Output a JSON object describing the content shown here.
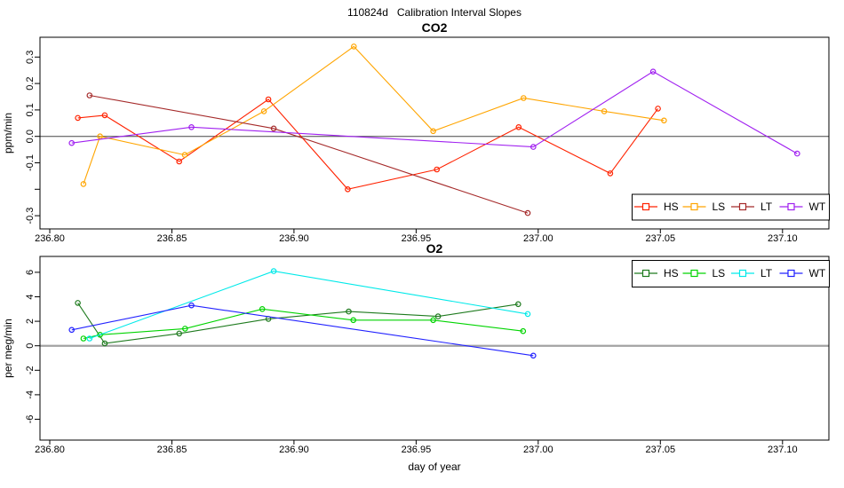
{
  "title": "110824d   Calibration Interval Slopes",
  "chart_data": [
    {
      "type": "line",
      "title": "CO2",
      "xlabel": "",
      "ylabel": "ppm/min",
      "xlim": [
        236.796,
        237.119
      ],
      "ylim": [
        -0.35,
        0.375
      ],
      "grid": false,
      "x_ticks": [
        236.8,
        236.85,
        236.9,
        236.95,
        237.0,
        237.05,
        237.1
      ],
      "x_tick_labels": [
        "236.80",
        "236.85",
        "236.90",
        "236.95",
        "237.00",
        "237.05",
        "237.10"
      ],
      "y_ticks": [
        0.3,
        0.2,
        0.1,
        0.0,
        -0.1,
        -0.2,
        -0.3
      ],
      "y_tick_labels": [
        "0.3",
        "0.2",
        "0.1",
        "0.0",
        "-0.1",
        "",
        "-0.3"
      ],
      "zero_line": {
        "y": 0,
        "color": "#454545",
        "width": 1
      },
      "legend_position": "bottomright",
      "marker": "open-circle",
      "series": [
        {
          "name": "HS",
          "color": "#ff2200",
          "x": [
            236.8115,
            236.8225,
            236.853,
            236.8895,
            236.922,
            236.9585,
            236.992,
            237.0295,
            237.049
          ],
          "y": [
            0.07,
            0.08,
            -0.095,
            0.14,
            -0.2,
            -0.125,
            0.035,
            -0.14,
            0.105
          ]
        },
        {
          "name": "LS",
          "color": "#ffa500",
          "x": [
            236.8138,
            236.8206,
            236.8553,
            236.8877,
            236.9245,
            236.957,
            236.994,
            237.027,
            237.0515
          ],
          "y": [
            -0.18,
            0.0,
            -0.07,
            0.095,
            0.34,
            0.02,
            0.145,
            0.095,
            0.06
          ]
        },
        {
          "name": "LT",
          "color": "#a52a2a",
          "x": [
            236.8163,
            236.8917,
            236.9957
          ],
          "y": [
            0.155,
            0.03,
            -0.29
          ]
        },
        {
          "name": "WT",
          "color": "#a020f0",
          "x": [
            236.809,
            236.858,
            236.998,
            237.047,
            237.106
          ],
          "y": [
            -0.025,
            0.035,
            -0.04,
            0.245,
            -0.065
          ]
        }
      ]
    },
    {
      "type": "line",
      "title": "O2",
      "xlabel": "day of year",
      "ylabel": "per meg/min",
      "xlim": [
        236.796,
        237.119
      ],
      "ylim": [
        -7.7,
        7.3
      ],
      "grid": false,
      "x_ticks": [
        236.8,
        236.85,
        236.9,
        236.95,
        237.0,
        237.05,
        237.1
      ],
      "x_tick_labels": [
        "236.80",
        "236.85",
        "236.90",
        "236.95",
        "237.00",
        "237.05",
        "237.10"
      ],
      "y_ticks": [
        6,
        4,
        2,
        0,
        -2,
        -4,
        -6
      ],
      "y_tick_labels": [
        "6",
        "4",
        "2",
        "0",
        "-2",
        "-4",
        "-6"
      ],
      "zero_line": {
        "y": 0,
        "color": "#a3a3a3",
        "width": 2.2
      },
      "legend_position": "topright",
      "marker": "open-circle",
      "series": [
        {
          "name": "HS",
          "color": "#1e7a1e",
          "x": [
            236.8115,
            236.8225,
            236.853,
            236.8895,
            236.9224,
            236.959,
            236.9918
          ],
          "y": [
            3.5,
            0.2,
            1.0,
            2.2,
            2.8,
            2.4,
            3.4
          ]
        },
        {
          "name": "LS",
          "color": "#00d400",
          "x": [
            236.8138,
            236.8206,
            236.8554,
            236.887,
            236.9243,
            236.957,
            236.9938
          ],
          "y": [
            0.6,
            0.9,
            1.4,
            3.0,
            2.1,
            2.1,
            1.2
          ]
        },
        {
          "name": "LT",
          "color": "#00e9e9",
          "x": [
            236.8163,
            236.8917,
            236.9957
          ],
          "y": [
            0.6,
            6.1,
            2.6
          ]
        },
        {
          "name": "WT",
          "color": "#2222ff",
          "x": [
            236.809,
            236.858,
            236.998
          ],
          "y": [
            1.3,
            3.3,
            -0.8
          ]
        }
      ]
    }
  ]
}
